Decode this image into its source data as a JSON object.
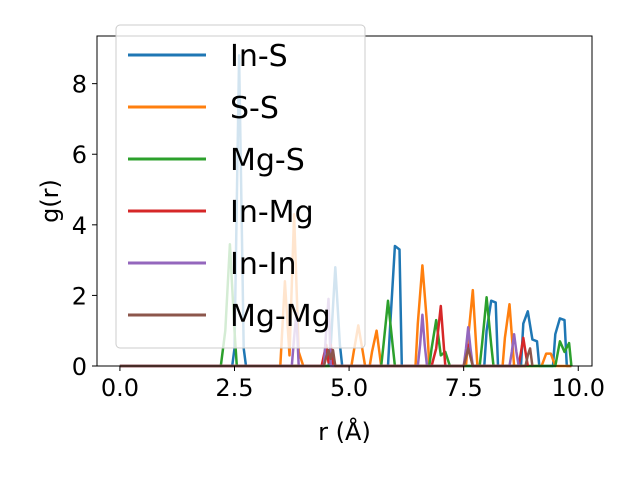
{
  "chart_data": {
    "type": "line",
    "xlabel": "r (Å)",
    "ylabel": "g(r)",
    "xlim": [
      -0.5,
      10.3
    ],
    "ylim": [
      0,
      9.35
    ],
    "xticks": [
      0.0,
      2.5,
      5.0,
      7.5,
      10.0
    ],
    "xtick_labels": [
      "0.0",
      "2.5",
      "5.0",
      "7.5",
      "10.0"
    ],
    "yticks": [
      0,
      2,
      4,
      6,
      8
    ],
    "ytick_labels": [
      "0",
      "2",
      "4",
      "6",
      "8"
    ],
    "grid": false,
    "legend_position": "top-left",
    "series": [
      {
        "name": "In-S",
        "color": "#1f77b4",
        "x": [
          0,
          2.45,
          2.5,
          2.6,
          2.7,
          2.75,
          4.55,
          4.6,
          4.7,
          4.8,
          4.85,
          5.85,
          5.9,
          6.0,
          6.1,
          6.15,
          7.95,
          8.0,
          8.1,
          8.2,
          8.25,
          8.75,
          8.8,
          8.9,
          9.0,
          9.1,
          9.15,
          9.45,
          9.5,
          9.6,
          9.7,
          9.75,
          9.8,
          9.85
        ],
        "y": [
          0,
          0,
          0.5,
          8.8,
          0.5,
          0,
          0,
          0.6,
          2.8,
          0.6,
          0,
          0,
          1.2,
          3.4,
          3.3,
          0,
          0,
          1.0,
          1.85,
          1.8,
          0,
          0,
          1.2,
          1.55,
          0.75,
          0.7,
          0,
          0,
          0.9,
          1.35,
          1.3,
          0,
          0,
          0
        ]
      },
      {
        "name": "S-S",
        "color": "#ff7f0e",
        "x": [
          0,
          3.5,
          3.6,
          3.7,
          3.8,
          3.9,
          4.0,
          5.05,
          5.1,
          5.2,
          5.3,
          5.35,
          5.45,
          5.5,
          5.6,
          5.7,
          6.45,
          6.5,
          6.6,
          6.7,
          6.75,
          7.55,
          7.6,
          7.7,
          7.8,
          8.35,
          8.4,
          8.5,
          8.6,
          9.2,
          9.3,
          9.4,
          9.5,
          9.85
        ],
        "y": [
          0,
          0,
          2.4,
          0.3,
          4.3,
          0.4,
          0,
          0,
          0.4,
          1.15,
          0.4,
          0,
          0,
          0.4,
          1.0,
          0,
          0,
          1.2,
          2.85,
          1.2,
          0,
          0,
          0.8,
          2.15,
          0,
          0,
          0.8,
          1.75,
          0,
          0,
          0.35,
          0.35,
          0,
          0
        ]
      },
      {
        "name": "Mg-S",
        "color": "#2ca02c",
        "x": [
          0,
          2.2,
          2.3,
          2.4,
          2.5,
          2.55,
          5.7,
          5.75,
          5.85,
          5.95,
          6.0,
          6.75,
          6.8,
          6.9,
          7.0,
          7.1,
          7.2,
          7.85,
          7.9,
          8.0,
          8.1,
          8.15,
          9.5,
          9.6,
          9.7,
          9.8,
          9.85
        ],
        "y": [
          0,
          0,
          1.0,
          3.45,
          1.0,
          0,
          0,
          0.6,
          1.85,
          0.6,
          0,
          0,
          0.5,
          1.3,
          0.3,
          0.4,
          0,
          0,
          0.6,
          1.95,
          0.6,
          0,
          0,
          0.7,
          0.4,
          0.65,
          0
        ]
      },
      {
        "name": "In-Mg",
        "color": "#d62728",
        "x": [
          0,
          4.4,
          4.45,
          4.5,
          4.55,
          4.6,
          4.65,
          6.8,
          6.9,
          7.0,
          7.1,
          7.5,
          7.55,
          7.6,
          7.65,
          7.7,
          8.7,
          8.75,
          8.8,
          8.85,
          8.9
        ],
        "y": [
          0,
          0,
          0.3,
          0.6,
          0.1,
          0.6,
          0,
          0,
          0.5,
          1.7,
          0,
          0,
          0.3,
          0.6,
          0.3,
          0,
          0,
          0.4,
          0.8,
          0.4,
          0
        ]
      },
      {
        "name": "In-In",
        "color": "#9467bd",
        "x": [
          0,
          3.75,
          3.8,
          3.85,
          3.9,
          4.45,
          4.5,
          4.55,
          4.6,
          6.5,
          6.55,
          6.6,
          6.65,
          6.7,
          7.5,
          7.55,
          7.6,
          7.65,
          7.7,
          8.5,
          8.55,
          8.6,
          8.65,
          8.7
        ],
        "y": [
          0,
          0,
          0.8,
          1.5,
          0,
          0,
          1.0,
          1.9,
          0,
          0,
          0.6,
          1.45,
          0.6,
          0,
          0,
          0.5,
          1.1,
          0.5,
          0,
          0,
          0.4,
          0.9,
          0.4,
          0
        ]
      },
      {
        "name": "Mg-Mg",
        "color": "#8c564b",
        "x": [
          0,
          4.45,
          4.5,
          4.55,
          4.6,
          4.65,
          4.7,
          7.5,
          7.55,
          7.6,
          7.65,
          7.7,
          8.85,
          8.9,
          8.95,
          9.0
        ],
        "y": [
          0,
          0,
          0.25,
          0.45,
          0.2,
          0.45,
          0,
          0,
          0.25,
          0.5,
          0.25,
          0,
          0,
          0.3,
          0.5,
          0
        ]
      }
    ]
  }
}
